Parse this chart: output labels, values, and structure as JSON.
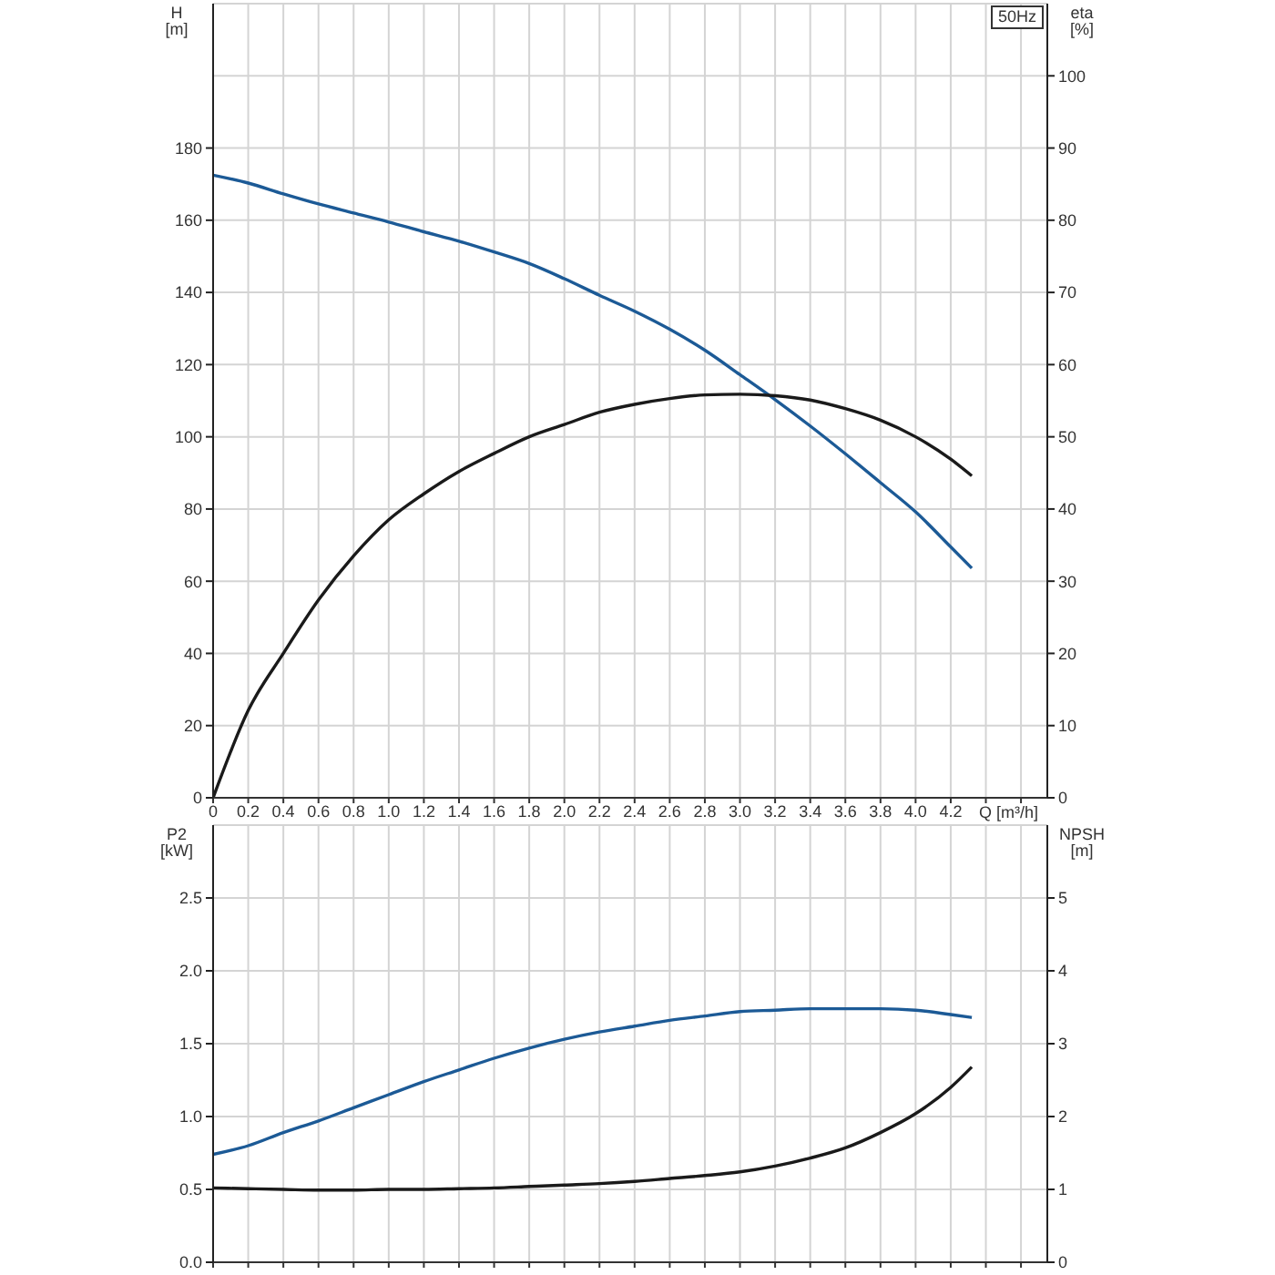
{
  "chart_data": [
    {
      "type": "line",
      "xlabel": "Q [m³/h]",
      "ylabel": "H [m]",
      "y2label": "eta [%]",
      "annotations": [
        "50Hz"
      ],
      "x": [
        0,
        0.2,
        0.4,
        0.6,
        0.8,
        1,
        1.2,
        1.4,
        1.6,
        1.8,
        2,
        2.2,
        2.4,
        2.6,
        2.8,
        3,
        3.2,
        3.4,
        3.6,
        3.8,
        4,
        4.2,
        4.32
      ],
      "series": [
        {
          "color": "#1c5a96",
          "values": [
            172.5,
            170.3,
            167.3,
            164.5,
            162,
            159.5,
            156.8,
            154.2,
            151.2,
            148,
            143.8,
            139.2,
            134.8,
            129.8,
            124,
            117.2,
            110.3,
            103,
            95.3,
            87.3,
            79.2,
            69.5,
            63.6
          ]
        },
        {
          "color": "#1a1a1a",
          "axis": "y2",
          "values": [
            0,
            12.1,
            20,
            27.4,
            33.5,
            38.5,
            42.1,
            45.2,
            47.7,
            50,
            51.7,
            53.4,
            54.5,
            55.3,
            55.8,
            55.9,
            55.7,
            55.1,
            53.9,
            52.3,
            50,
            46.9,
            44.6
          ]
        }
      ],
      "xlim": [
        0,
        4.75
      ],
      "xticks": [
        0,
        0.2,
        0.4,
        0.6,
        0.8,
        {
          "value": 1,
          "label": "1.0"
        },
        1.2,
        1.4,
        1.6,
        1.8,
        {
          "value": 2,
          "label": "2.0"
        },
        2.2,
        2.4,
        2.6,
        2.8,
        {
          "value": 3,
          "label": "3.0"
        },
        3.2,
        3.4,
        3.6,
        3.8,
        {
          "value": 4,
          "label": "4.0"
        },
        4.2,
        {
          "value": 4.4,
          "label": null
        },
        {
          "value": 4.6,
          "label": null
        }
      ],
      "ylim": [
        0,
        220
      ],
      "yticks": [
        0,
        20,
        40,
        60,
        80,
        100,
        120,
        140,
        160,
        180
      ],
      "y2lim": [
        0,
        110
      ],
      "y2ticks": [
        0,
        10,
        20,
        30,
        40,
        50,
        60,
        70,
        80,
        90,
        100
      ],
      "grid": true
    },
    {
      "type": "line",
      "ylabel": "P2 [kW]",
      "y2label": "NPSH [m]",
      "x": [
        0,
        0.2,
        0.4,
        0.6,
        0.8,
        1,
        1.2,
        1.4,
        1.6,
        1.8,
        2,
        2.2,
        2.4,
        2.6,
        2.8,
        3,
        3.2,
        3.4,
        3.6,
        3.8,
        4,
        4.2,
        4.32
      ],
      "series": [
        {
          "color": "#1c5a96",
          "values": [
            0.74,
            0.8,
            0.89,
            0.97,
            1.06,
            1.15,
            1.24,
            1.32,
            1.4,
            1.47,
            1.53,
            1.58,
            1.62,
            1.66,
            1.69,
            1.72,
            1.73,
            1.74,
            1.74,
            1.74,
            1.73,
            1.7,
            1.68
          ]
        },
        {
          "color": "#1a1a1a",
          "axis": "y2",
          "values": [
            1.02,
            1.01,
            1,
            0.99,
            0.99,
            1,
            1,
            1.01,
            1.02,
            1.04,
            1.06,
            1.08,
            1.11,
            1.15,
            1.19,
            1.24,
            1.32,
            1.43,
            1.57,
            1.78,
            2.04,
            2.4,
            2.68
          ]
        }
      ],
      "xlim": [
        0,
        4.75
      ],
      "xticks": [
        0,
        0.2,
        0.4,
        0.6,
        0.8,
        1,
        1.2,
        1.4,
        1.6,
        1.8,
        2,
        2.2,
        2.4,
        2.6,
        2.8,
        3,
        3.2,
        3.4,
        3.6,
        3.8,
        4,
        4.2,
        4.4,
        4.6
      ],
      "ylim": [
        0,
        3
      ],
      "yticks": [
        {
          "value": 0,
          "label": "0.0"
        },
        0.5,
        {
          "value": 1,
          "label": "1.0"
        },
        1.5,
        {
          "value": 2,
          "label": "2.0"
        },
        2.5
      ],
      "y2lim": [
        0,
        6
      ],
      "y2ticks": [
        0,
        1,
        2,
        3,
        4,
        5
      ],
      "grid": true,
      "tick_labels": "y"
    }
  ]
}
